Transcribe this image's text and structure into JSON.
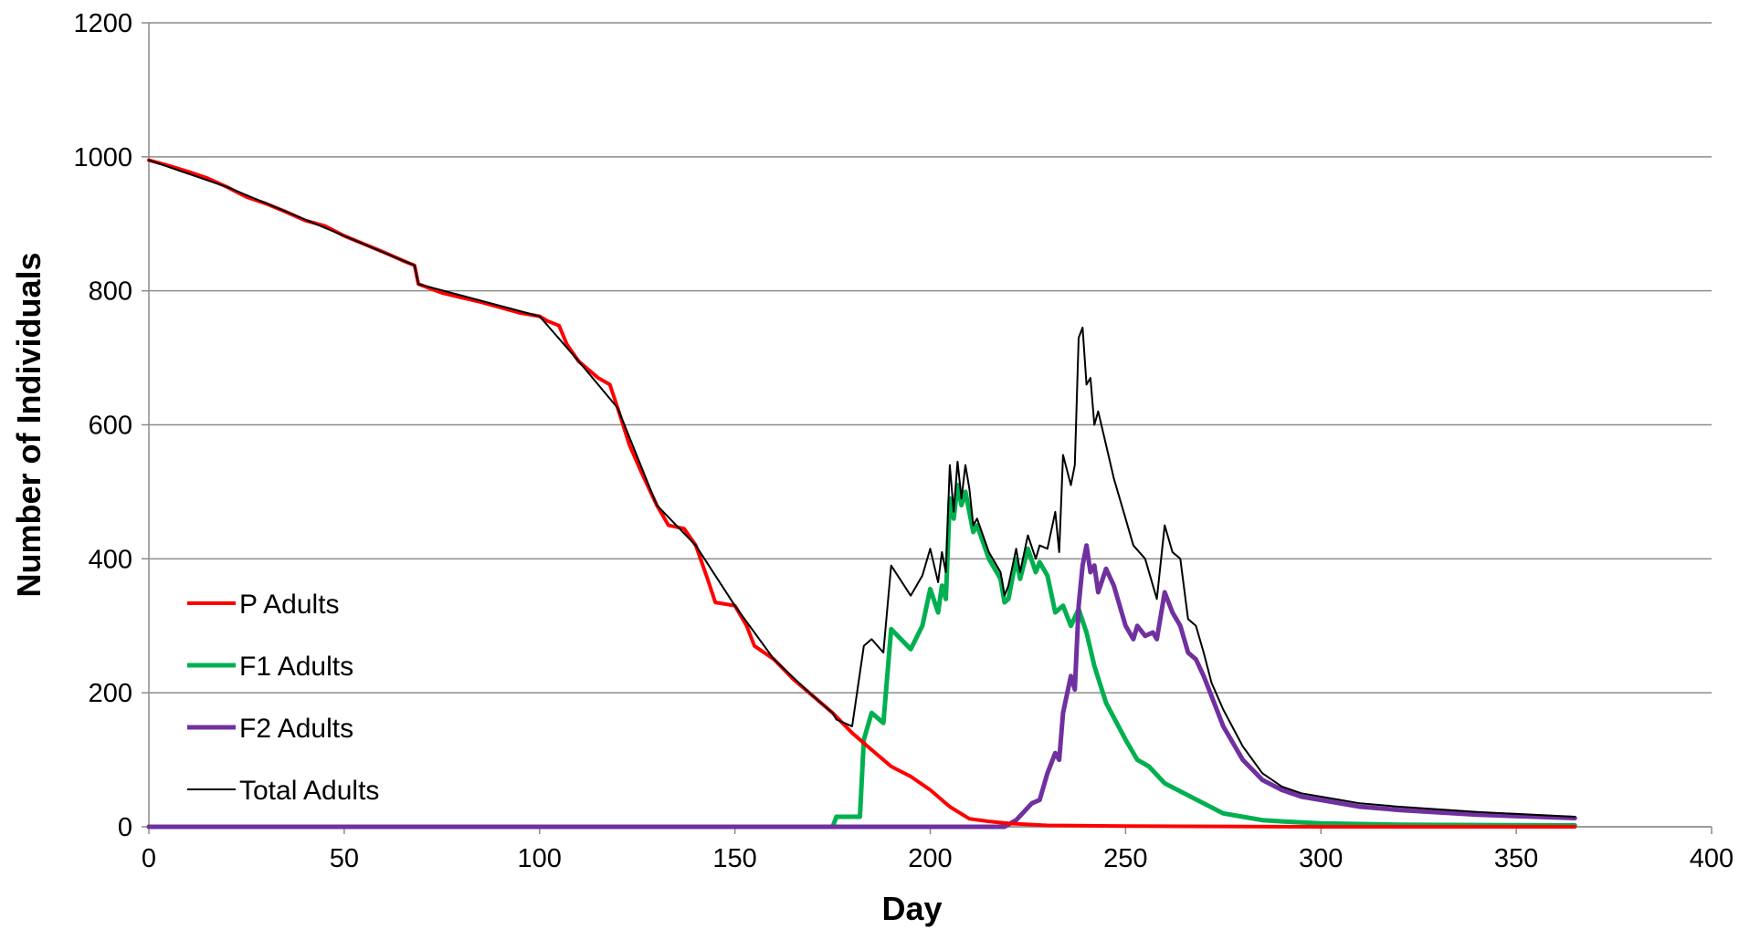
{
  "chart_data": {
    "type": "line",
    "title": "",
    "xlabel": "Day",
    "ylabel": "Number of Individuals",
    "xlim": [
      0,
      400
    ],
    "ylim": [
      0,
      1200
    ],
    "x_ticks": [
      0,
      50,
      100,
      150,
      200,
      250,
      300,
      350,
      400
    ],
    "y_ticks": [
      0,
      200,
      400,
      600,
      800,
      1000,
      1200
    ],
    "grid": "horizontal",
    "legend_position": "lower-left",
    "series": [
      {
        "name": "P Adults",
        "color": "#ff0000",
        "points": [
          [
            0,
            995
          ],
          [
            5,
            987
          ],
          [
            10,
            978
          ],
          [
            15,
            968
          ],
          [
            20,
            955
          ],
          [
            25,
            940
          ],
          [
            30,
            930
          ],
          [
            35,
            918
          ],
          [
            40,
            905
          ],
          [
            45,
            897
          ],
          [
            50,
            882
          ],
          [
            55,
            870
          ],
          [
            60,
            858
          ],
          [
            65,
            845
          ],
          [
            68,
            838
          ],
          [
            69,
            810
          ],
          [
            75,
            797
          ],
          [
            80,
            790
          ],
          [
            85,
            783
          ],
          [
            90,
            775
          ],
          [
            95,
            767
          ],
          [
            100,
            762
          ],
          [
            102,
            755
          ],
          [
            105,
            748
          ],
          [
            107,
            720
          ],
          [
            110,
            695
          ],
          [
            115,
            670
          ],
          [
            118,
            660
          ],
          [
            120,
            625
          ],
          [
            123,
            570
          ],
          [
            126,
            530
          ],
          [
            130,
            480
          ],
          [
            133,
            450
          ],
          [
            137,
            445
          ],
          [
            140,
            420
          ],
          [
            143,
            370
          ],
          [
            145,
            335
          ],
          [
            150,
            330
          ],
          [
            153,
            300
          ],
          [
            155,
            270
          ],
          [
            160,
            250
          ],
          [
            165,
            220
          ],
          [
            170,
            195
          ],
          [
            175,
            170
          ],
          [
            180,
            140
          ],
          [
            185,
            115
          ],
          [
            190,
            90
          ],
          [
            195,
            75
          ],
          [
            200,
            55
          ],
          [
            205,
            30
          ],
          [
            210,
            12
          ],
          [
            215,
            8
          ],
          [
            220,
            5
          ],
          [
            230,
            2
          ],
          [
            250,
            1
          ],
          [
            300,
            0
          ],
          [
            365,
            0
          ]
        ]
      },
      {
        "name": "F1 Adults",
        "color": "#00b050",
        "points": [
          [
            0,
            0
          ],
          [
            175,
            0
          ],
          [
            176,
            15
          ],
          [
            182,
            15
          ],
          [
            183,
            130
          ],
          [
            185,
            170
          ],
          [
            188,
            155
          ],
          [
            190,
            295
          ],
          [
            195,
            265
          ],
          [
            198,
            300
          ],
          [
            200,
            355
          ],
          [
            202,
            320
          ],
          [
            203,
            360
          ],
          [
            204,
            340
          ],
          [
            205,
            490
          ],
          [
            206,
            460
          ],
          [
            207,
            510
          ],
          [
            208,
            480
          ],
          [
            209,
            500
          ],
          [
            210,
            470
          ],
          [
            211,
            440
          ],
          [
            212,
            450
          ],
          [
            215,
            400
          ],
          [
            218,
            370
          ],
          [
            219,
            335
          ],
          [
            220,
            340
          ],
          [
            222,
            400
          ],
          [
            223,
            370
          ],
          [
            225,
            415
          ],
          [
            227,
            380
          ],
          [
            228,
            395
          ],
          [
            230,
            375
          ],
          [
            232,
            320
          ],
          [
            234,
            330
          ],
          [
            236,
            300
          ],
          [
            238,
            325
          ],
          [
            240,
            290
          ],
          [
            242,
            240
          ],
          [
            245,
            185
          ],
          [
            250,
            130
          ],
          [
            253,
            100
          ],
          [
            256,
            90
          ],
          [
            260,
            65
          ],
          [
            265,
            50
          ],
          [
            270,
            35
          ],
          [
            275,
            20
          ],
          [
            280,
            15
          ],
          [
            285,
            10
          ],
          [
            290,
            8
          ],
          [
            300,
            5
          ],
          [
            320,
            3
          ],
          [
            365,
            2
          ]
        ]
      },
      {
        "name": "F2 Adults",
        "color": "#7030a0",
        "points": [
          [
            0,
            0
          ],
          [
            219,
            0
          ],
          [
            222,
            10
          ],
          [
            226,
            35
          ],
          [
            228,
            40
          ],
          [
            230,
            80
          ],
          [
            232,
            110
          ],
          [
            233,
            100
          ],
          [
            234,
            170
          ],
          [
            236,
            225
          ],
          [
            237,
            205
          ],
          [
            238,
            330
          ],
          [
            239,
            390
          ],
          [
            240,
            420
          ],
          [
            241,
            380
          ],
          [
            242,
            390
          ],
          [
            243,
            350
          ],
          [
            245,
            385
          ],
          [
            247,
            360
          ],
          [
            250,
            300
          ],
          [
            252,
            280
          ],
          [
            253,
            300
          ],
          [
            255,
            285
          ],
          [
            257,
            290
          ],
          [
            258,
            280
          ],
          [
            260,
            350
          ],
          [
            262,
            320
          ],
          [
            264,
            300
          ],
          [
            266,
            260
          ],
          [
            268,
            250
          ],
          [
            270,
            225
          ],
          [
            272,
            195
          ],
          [
            275,
            150
          ],
          [
            280,
            100
          ],
          [
            285,
            70
          ],
          [
            290,
            55
          ],
          [
            295,
            45
          ],
          [
            300,
            40
          ],
          [
            310,
            30
          ],
          [
            320,
            25
          ],
          [
            340,
            18
          ],
          [
            365,
            13
          ]
        ]
      },
      {
        "name": "Total Adults",
        "color": "#000000",
        "points": [
          [
            0,
            995
          ],
          [
            20,
            955
          ],
          [
            50,
            882
          ],
          [
            68,
            838
          ],
          [
            69,
            810
          ],
          [
            100,
            762
          ],
          [
            110,
            695
          ],
          [
            120,
            625
          ],
          [
            130,
            480
          ],
          [
            140,
            420
          ],
          [
            150,
            330
          ],
          [
            160,
            250
          ],
          [
            170,
            195
          ],
          [
            175,
            170
          ],
          [
            176,
            160
          ],
          [
            180,
            150
          ],
          [
            183,
            270
          ],
          [
            185,
            280
          ],
          [
            188,
            260
          ],
          [
            190,
            390
          ],
          [
            195,
            345
          ],
          [
            198,
            375
          ],
          [
            200,
            415
          ],
          [
            202,
            365
          ],
          [
            203,
            410
          ],
          [
            204,
            380
          ],
          [
            205,
            540
          ],
          [
            206,
            470
          ],
          [
            207,
            545
          ],
          [
            208,
            490
          ],
          [
            209,
            540
          ],
          [
            210,
            505
          ],
          [
            211,
            450
          ],
          [
            212,
            460
          ],
          [
            215,
            410
          ],
          [
            218,
            380
          ],
          [
            219,
            345
          ],
          [
            220,
            360
          ],
          [
            222,
            415
          ],
          [
            223,
            380
          ],
          [
            225,
            435
          ],
          [
            227,
            400
          ],
          [
            228,
            420
          ],
          [
            230,
            415
          ],
          [
            232,
            470
          ],
          [
            233,
            410
          ],
          [
            234,
            555
          ],
          [
            236,
            510
          ],
          [
            237,
            540
          ],
          [
            238,
            730
          ],
          [
            239,
            745
          ],
          [
            240,
            660
          ],
          [
            241,
            670
          ],
          [
            242,
            600
          ],
          [
            243,
            620
          ],
          [
            245,
            570
          ],
          [
            247,
            520
          ],
          [
            250,
            460
          ],
          [
            252,
            420
          ],
          [
            255,
            400
          ],
          [
            258,
            340
          ],
          [
            260,
            450
          ],
          [
            262,
            410
          ],
          [
            264,
            400
          ],
          [
            266,
            310
          ],
          [
            268,
            300
          ],
          [
            270,
            260
          ],
          [
            272,
            215
          ],
          [
            275,
            175
          ],
          [
            280,
            120
          ],
          [
            285,
            80
          ],
          [
            290,
            60
          ],
          [
            295,
            50
          ],
          [
            300,
            45
          ],
          [
            305,
            40
          ],
          [
            310,
            35
          ],
          [
            320,
            30
          ],
          [
            340,
            22
          ],
          [
            365,
            15
          ]
        ]
      }
    ]
  }
}
